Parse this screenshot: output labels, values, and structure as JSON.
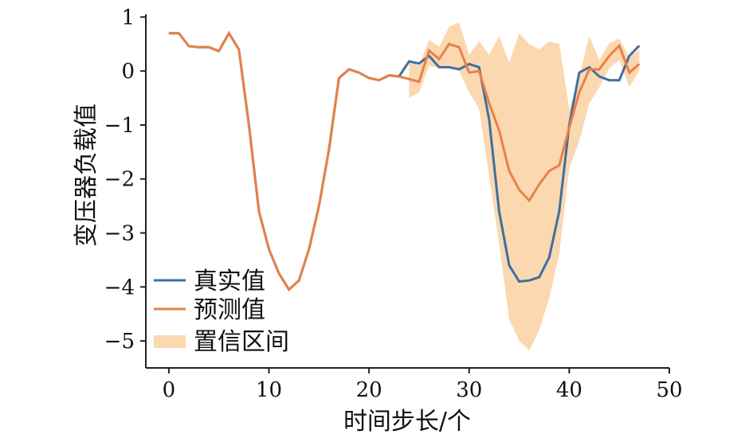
{
  "chart_data": {
    "type": "line",
    "xlabel": "时间步长/个",
    "ylabel": "变压器负载值",
    "xlim": [
      -2.3,
      50
    ],
    "ylim": [
      -5.5,
      1.05
    ],
    "x_ticks": [
      0,
      10,
      20,
      30,
      40,
      50
    ],
    "y_ticks": [
      1,
      0,
      -1,
      -2,
      -3,
      -4,
      -5
    ],
    "y_tick_labels": [
      "1",
      "0",
      "−1",
      "−2",
      "−3",
      "−4",
      "−5"
    ],
    "grid": false,
    "legend_position": "bottom-left",
    "colors": {
      "true": "#3f6f9e",
      "pred": "#e8804a",
      "band": "#fbd8b0",
      "axis": "#222222"
    },
    "series": [
      {
        "name": "真实值",
        "x": [
          0,
          1,
          2,
          3,
          4,
          5,
          6,
          7,
          8,
          9,
          10,
          11,
          12,
          13,
          14,
          15,
          16,
          17,
          18,
          19,
          20,
          21,
          22,
          23,
          24,
          25,
          26,
          27,
          28,
          29,
          30,
          31,
          32,
          33,
          34,
          35,
          36,
          37,
          38,
          39,
          40,
          41,
          42,
          43,
          44,
          45,
          46,
          47
        ],
        "y": [
          0.7,
          0.7,
          0.46,
          0.44,
          0.44,
          0.37,
          0.7,
          0.4,
          -1.0,
          -2.6,
          -3.3,
          -3.75,
          -4.05,
          -3.88,
          -3.3,
          -2.5,
          -1.45,
          -0.13,
          0.03,
          -0.03,
          -0.13,
          -0.17,
          -0.08,
          -0.1,
          0.18,
          0.14,
          0.28,
          0.07,
          0.07,
          0.03,
          0.13,
          0.07,
          -0.9,
          -2.6,
          -3.6,
          -3.9,
          -3.88,
          -3.82,
          -3.45,
          -2.6,
          -1.0,
          -0.03,
          0.07,
          -0.1,
          -0.17,
          -0.17,
          0.28,
          0.47
        ]
      },
      {
        "name": "预测值",
        "x": [
          0,
          1,
          2,
          3,
          4,
          5,
          6,
          7,
          8,
          9,
          10,
          11,
          12,
          13,
          14,
          15,
          16,
          17,
          18,
          19,
          20,
          21,
          22,
          23,
          24,
          25,
          26,
          27,
          28,
          29,
          30,
          31,
          32,
          33,
          34,
          35,
          36,
          37,
          38,
          39,
          40,
          41,
          42,
          43,
          44,
          45,
          46,
          47
        ],
        "y": [
          0.7,
          0.7,
          0.46,
          0.44,
          0.44,
          0.37,
          0.7,
          0.4,
          -1.0,
          -2.6,
          -3.3,
          -3.75,
          -4.05,
          -3.88,
          -3.3,
          -2.5,
          -1.45,
          -0.13,
          0.03,
          -0.03,
          -0.13,
          -0.17,
          -0.08,
          -0.1,
          -0.15,
          -0.2,
          0.38,
          0.22,
          0.5,
          0.44,
          -0.03,
          0.0,
          -0.6,
          -1.1,
          -1.85,
          -2.2,
          -2.4,
          -2.1,
          -1.85,
          -1.75,
          -1.05,
          -0.4,
          0.03,
          0.03,
          0.28,
          0.47,
          -0.03,
          0.13
        ]
      },
      {
        "name": "置信区间",
        "x": [
          24,
          25,
          26,
          27,
          28,
          29,
          30,
          31,
          32,
          33,
          34,
          35,
          36,
          37,
          38,
          39,
          40,
          41,
          42,
          43,
          44,
          45,
          46,
          47
        ],
        "lower": [
          -0.5,
          -0.4,
          0.1,
          0.05,
          0.1,
          0.0,
          -0.4,
          -0.7,
          -1.95,
          -3.2,
          -4.6,
          -5.0,
          -5.18,
          -4.8,
          -4.2,
          -3.4,
          -1.8,
          -1.3,
          -0.6,
          -0.3,
          0.05,
          0.2,
          -0.3,
          0.0
        ],
        "upper": [
          0.2,
          0.1,
          0.58,
          0.45,
          0.82,
          0.9,
          0.3,
          0.55,
          0.3,
          0.65,
          0.15,
          0.7,
          0.5,
          0.4,
          0.55,
          0.5,
          -0.7,
          -0.1,
          0.65,
          0.2,
          0.52,
          0.6,
          0.25,
          0.4
        ]
      }
    ]
  }
}
